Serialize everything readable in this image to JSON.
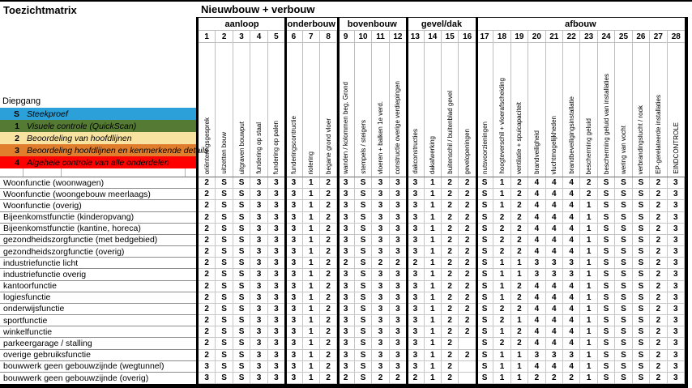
{
  "title": "Toezichtmatrix",
  "main_header": "Nieuwbouw + verbouw",
  "diepgang": {
    "label": "Diepgang",
    "levels": [
      {
        "code": "S",
        "label": "Steekproef",
        "color": "#2BA0D9"
      },
      {
        "code": "1",
        "label": "Visuele controle (QuickScan)",
        "color": "#547A34"
      },
      {
        "code": "2",
        "label": "Beoordeling van hoofdlijnen",
        "color": "#F8E3A0"
      },
      {
        "code": "3",
        "label": "Beoordeling hoofdlijnen en kenmerkende details",
        "color": "#E07E2E"
      },
      {
        "code": "4",
        "label": "Algehele controle van alle onderdelen",
        "color": "#FE0000"
      }
    ]
  },
  "groups": [
    {
      "label": "aanloop",
      "span": 5
    },
    {
      "label": "onderbouw",
      "span": 3
    },
    {
      "label": "bovenbouw",
      "span": 4
    },
    {
      "label": "gevel/dak",
      "span": 4
    },
    {
      "label": "afbouw",
      "span": 12
    }
  ],
  "columns": [
    {
      "num": "1",
      "label": "oriënteringsgesprek"
    },
    {
      "num": "2",
      "label": "uitzetten bouw"
    },
    {
      "num": "3",
      "label": "uitgraven bouwput"
    },
    {
      "num": "4",
      "label": "fundering op staal"
    },
    {
      "num": "5",
      "label": "fundering op palen"
    },
    {
      "num": "6",
      "label": "funderingscontructie"
    },
    {
      "num": "7",
      "label": "riolering"
    },
    {
      "num": "8",
      "label": "begane grond vloer"
    },
    {
      "num": "9",
      "label": "wanden / kolommen beg. Grond"
    },
    {
      "num": "10",
      "label": "stempels / steigers"
    },
    {
      "num": "11",
      "label": "vloeren + balken 1e verd."
    },
    {
      "num": "12",
      "label": "constructie overige verdiepingen"
    },
    {
      "num": "13",
      "label": "dakconstructies"
    },
    {
      "num": "14",
      "label": "dakafwerking"
    },
    {
      "num": "15",
      "label": "buitenschil / buitenblad gevel"
    },
    {
      "num": "16",
      "label": "gevelopeningen"
    },
    {
      "num": "17",
      "label": "nutsvoorzieningen"
    },
    {
      "num": "18",
      "label": "hoogteverschil + vloerafscheiding"
    },
    {
      "num": "19",
      "label": "ventilatie + spuicapaciteit"
    },
    {
      "num": "20",
      "label": "brandveiligheid"
    },
    {
      "num": "21",
      "label": "vluchtmogelijkheden"
    },
    {
      "num": "22",
      "label": "brandbeveiligingsinstallatie"
    },
    {
      "num": "23",
      "label": "bescherming geluid"
    },
    {
      "num": "24",
      "label": "bescherming geluid van installaties"
    },
    {
      "num": "25",
      "label": "wering van vocht"
    },
    {
      "num": "26",
      "label": "verbrandingslucht / rook"
    },
    {
      "num": "27",
      "label": "EP-gerelateerde installaties"
    },
    {
      "num": "28",
      "label": "EINDCONTROLE"
    }
  ],
  "rows": [
    {
      "label": "Woonfunctie (woonwagen)",
      "values": [
        "2",
        "S",
        "S",
        "3",
        "3",
        "3",
        "1",
        "2",
        "3",
        "S",
        "3",
        "3",
        "3",
        "1",
        "2",
        "2",
        "S",
        "1",
        "2",
        "4",
        "4",
        "4",
        "2",
        "S",
        "S",
        "S",
        "2",
        "3"
      ]
    },
    {
      "label": "Woonfunctie (woongebouw meerlaags)",
      "values": [
        "2",
        "S",
        "S",
        "3",
        "3",
        "3",
        "1",
        "2",
        "3",
        "S",
        "3",
        "3",
        "3",
        "1",
        "2",
        "2",
        "S",
        "1",
        "2",
        "4",
        "4",
        "4",
        "2",
        "S",
        "S",
        "S",
        "2",
        "3"
      ]
    },
    {
      "label": "Woonfunctie (overig)",
      "values": [
        "2",
        "S",
        "S",
        "3",
        "3",
        "3",
        "1",
        "2",
        "3",
        "S",
        "3",
        "3",
        "3",
        "1",
        "2",
        "2",
        "S",
        "1",
        "2",
        "4",
        "4",
        "4",
        "1",
        "S",
        "S",
        "S",
        "2",
        "3"
      ]
    },
    {
      "label": "Bijeenkomstfunctie (kinderopvang)",
      "values": [
        "2",
        "S",
        "S",
        "3",
        "3",
        "3",
        "1",
        "2",
        "3",
        "S",
        "3",
        "3",
        "3",
        "1",
        "2",
        "2",
        "S",
        "2",
        "2",
        "4",
        "4",
        "4",
        "1",
        "S",
        "S",
        "S",
        "2",
        "3"
      ]
    },
    {
      "label": "Bijeenkomstfunctie (kantine, horeca)",
      "values": [
        "2",
        "S",
        "S",
        "3",
        "3",
        "3",
        "1",
        "2",
        "3",
        "S",
        "3",
        "3",
        "3",
        "1",
        "2",
        "2",
        "S",
        "2",
        "2",
        "4",
        "4",
        "4",
        "1",
        "S",
        "S",
        "S",
        "2",
        "3"
      ]
    },
    {
      "label": "gezondheidszorgfunctie (met bedgebied)",
      "values": [
        "2",
        "S",
        "S",
        "3",
        "3",
        "3",
        "1",
        "2",
        "3",
        "S",
        "3",
        "3",
        "3",
        "1",
        "2",
        "2",
        "S",
        "2",
        "2",
        "4",
        "4",
        "4",
        "1",
        "S",
        "S",
        "S",
        "2",
        "3"
      ]
    },
    {
      "label": "gezondheidszorgfunctie (overig)",
      "values": [
        "2",
        "S",
        "S",
        "3",
        "3",
        "3",
        "1",
        "2",
        "3",
        "S",
        "3",
        "3",
        "3",
        "1",
        "2",
        "2",
        "S",
        "2",
        "2",
        "4",
        "4",
        "4",
        "1",
        "S",
        "S",
        "S",
        "2",
        "3"
      ]
    },
    {
      "label": "industriefunctie licht",
      "values": [
        "2",
        "S",
        "S",
        "3",
        "3",
        "3",
        "1",
        "2",
        "2",
        "S",
        "2",
        "2",
        "2",
        "1",
        "2",
        "2",
        "S",
        "1",
        "1",
        "3",
        "3",
        "3",
        "1",
        "S",
        "S",
        "S",
        "2",
        "3"
      ]
    },
    {
      "label": "industriefunctie overig",
      "values": [
        "2",
        "S",
        "S",
        "3",
        "3",
        "3",
        "1",
        "2",
        "3",
        "S",
        "3",
        "3",
        "3",
        "1",
        "2",
        "2",
        "S",
        "1",
        "1",
        "3",
        "3",
        "3",
        "1",
        "S",
        "S",
        "S",
        "2",
        "3"
      ]
    },
    {
      "label": "kantoorfunctie",
      "values": [
        "2",
        "S",
        "S",
        "3",
        "3",
        "3",
        "1",
        "2",
        "3",
        "S",
        "3",
        "3",
        "3",
        "1",
        "2",
        "2",
        "S",
        "1",
        "2",
        "4",
        "4",
        "4",
        "1",
        "S",
        "S",
        "S",
        "2",
        "3"
      ]
    },
    {
      "label": "logiesfunctie",
      "values": [
        "2",
        "S",
        "S",
        "3",
        "3",
        "3",
        "1",
        "2",
        "3",
        "S",
        "3",
        "3",
        "3",
        "1",
        "2",
        "2",
        "S",
        "1",
        "2",
        "4",
        "4",
        "4",
        "1",
        "S",
        "S",
        "S",
        "2",
        "3"
      ]
    },
    {
      "label": "onderwijsfunctie",
      "values": [
        "2",
        "S",
        "S",
        "3",
        "3",
        "3",
        "1",
        "2",
        "3",
        "S",
        "3",
        "3",
        "3",
        "1",
        "2",
        "2",
        "S",
        "2",
        "2",
        "4",
        "4",
        "4",
        "1",
        "S",
        "S",
        "S",
        "2",
        "3"
      ]
    },
    {
      "label": "sportfunctie",
      "values": [
        "2",
        "S",
        "S",
        "3",
        "3",
        "3",
        "1",
        "2",
        "3",
        "S",
        "3",
        "3",
        "3",
        "1",
        "2",
        "2",
        "S",
        "2",
        "1",
        "4",
        "4",
        "4",
        "1",
        "S",
        "S",
        "S",
        "2",
        "3"
      ]
    },
    {
      "label": "winkelfunctie",
      "values": [
        "2",
        "S",
        "S",
        "3",
        "3",
        "3",
        "1",
        "2",
        "3",
        "S",
        "3",
        "3",
        "3",
        "1",
        "2",
        "2",
        "S",
        "1",
        "2",
        "4",
        "4",
        "4",
        "1",
        "S",
        "S",
        "S",
        "2",
        "3"
      ]
    },
    {
      "label": "parkeergarage / stalling",
      "values": [
        "2",
        "S",
        "S",
        "3",
        "3",
        "3",
        "1",
        "2",
        "3",
        "S",
        "3",
        "3",
        "3",
        "1",
        "2",
        "",
        "S",
        "2",
        "2",
        "4",
        "4",
        "4",
        "1",
        "S",
        "S",
        "S",
        "2",
        "3"
      ]
    },
    {
      "label": "overige gebruiksfunctie",
      "values": [
        "2",
        "S",
        "S",
        "3",
        "3",
        "3",
        "1",
        "2",
        "3",
        "S",
        "3",
        "3",
        "3",
        "1",
        "2",
        "2",
        "S",
        "1",
        "1",
        "3",
        "3",
        "3",
        "1",
        "S",
        "S",
        "S",
        "2",
        "3"
      ]
    },
    {
      "label": "bouwwerk geen gebouwzijnde (wegtunnel)",
      "values": [
        "3",
        "S",
        "S",
        "3",
        "3",
        "3",
        "1",
        "2",
        "3",
        "S",
        "3",
        "3",
        "3",
        "1",
        "2",
        "",
        "S",
        "1",
        "1",
        "4",
        "4",
        "4",
        "1",
        "S",
        "S",
        "S",
        "2",
        "3"
      ]
    },
    {
      "label": "bouwwerk geen gebouwzijnde (overig)",
      "values": [
        "3",
        "S",
        "S",
        "3",
        "3",
        "3",
        "1",
        "2",
        "2",
        "S",
        "2",
        "2",
        "2",
        "1",
        "2",
        "",
        "S",
        "1",
        "1",
        "2",
        "2",
        "2",
        "1",
        "S",
        "S",
        "S",
        "2",
        "3"
      ]
    }
  ]
}
